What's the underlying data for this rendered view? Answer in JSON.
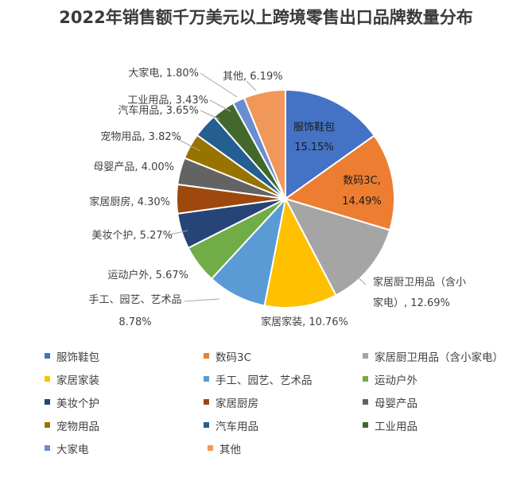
{
  "chart_data": {
    "type": "pie",
    "title": "2022年销售额千万美元以上跨境零售出口品牌数量分布",
    "slices": [
      {
        "name": "服饰鞋包",
        "value": 15.15,
        "label": "15.15%",
        "color": "#4472c4"
      },
      {
        "name": "数码3C",
        "value": 14.49,
        "label": "14.49%",
        "color": "#ed7d31"
      },
      {
        "name": "家居厨卫用品（含小家电）",
        "value": 12.69,
        "label": "12.69%",
        "color": "#a5a5a5"
      },
      {
        "name": "家居家装",
        "value": 10.76,
        "label": "10.76%",
        "color": "#ffc000"
      },
      {
        "name": "手工、园艺、艺术品",
        "value": 8.78,
        "label": "8.78%",
        "color": "#5b9bd5"
      },
      {
        "name": "运动户外",
        "value": 5.67,
        "label": "5.67%",
        "color": "#70ad47"
      },
      {
        "name": "美妆个护",
        "value": 5.27,
        "label": "5.27%",
        "color": "#264478"
      },
      {
        "name": "家居厨房",
        "value": 4.3,
        "label": "4.30%",
        "color": "#9e480e"
      },
      {
        "name": "母婴产品",
        "value": 4.0,
        "label": "4.00%",
        "color": "#636363"
      },
      {
        "name": "宠物用品",
        "value": 3.82,
        "label": "3.82%",
        "color": "#997300"
      },
      {
        "name": "汽车用品",
        "value": 3.65,
        "label": "3.65%",
        "color": "#255e91"
      },
      {
        "name": "工业用品",
        "value": 3.43,
        "label": "3.43%",
        "color": "#43682b"
      },
      {
        "name": "大家电",
        "value": 1.8,
        "label": "1.80%",
        "color": "#698ed0"
      },
      {
        "name": "其他",
        "value": 6.19,
        "label": "6.19%",
        "color": "#f1975a"
      }
    ],
    "legend_position": "bottom",
    "data_labels": true
  },
  "labels": {
    "l0a": "服饰鞋包",
    "l0b": "15.15%",
    "l1a": "数码3C,",
    "l1b": "14.49%",
    "l2a": "家居厨卫用品（含小",
    "l2b": "家电）, 12.69%",
    "l3": "家居家装, 10.76%",
    "l4a": "手工、园艺、艺术品",
    "l4b": "8.78%",
    "l5": "运动户外, 5.67%",
    "l6": "美妆个护, 5.27%",
    "l7": "家居厨房, 4.30%",
    "l8": "母婴产品, 4.00%",
    "l9": "宠物用品, 3.82%",
    "l10": "汽车用品, 3.65%",
    "l11": "工业用品, 3.43%",
    "l12": "大家电, 1.80%",
    "l13": "其他, 6.19%"
  },
  "legend": [
    [
      "服饰鞋包",
      "数码3C",
      "家居厨卫用品（含小家电）"
    ],
    [
      "家居家装",
      "手工、园艺、艺术品",
      "运动户外"
    ],
    [
      "美妆个护",
      "家居厨房",
      "母婴产品"
    ],
    [
      "宠物用品",
      "汽车用品",
      "工业用品"
    ],
    [
      "大家电",
      "其他"
    ]
  ]
}
